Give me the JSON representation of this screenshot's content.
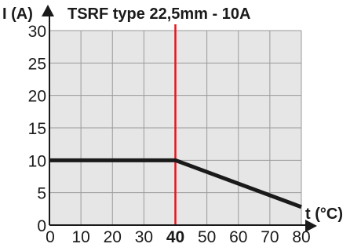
{
  "chart_data": {
    "type": "line",
    "title": "TSRF type 22,5mm - 10A",
    "ylabel": "I (A)",
    "xlabel": "t (°C)",
    "xlim": [
      0,
      80
    ],
    "ylim": [
      0,
      30
    ],
    "x_ticks": [
      0,
      10,
      20,
      30,
      40,
      50,
      60,
      70,
      80
    ],
    "y_ticks": [
      0,
      5,
      10,
      15,
      20,
      25,
      30
    ],
    "highlighted_x_tick": 40,
    "grid": true,
    "series": [
      {
        "x": [
          0,
          40,
          80
        ],
        "y": [
          10,
          10,
          2.8
        ],
        "color": "#1a1a1a"
      }
    ],
    "reference_line": {
      "x": 40,
      "color": "#e8141c"
    },
    "plot_background": "#e6e6e6",
    "grid_color": "#9a9a9a"
  }
}
